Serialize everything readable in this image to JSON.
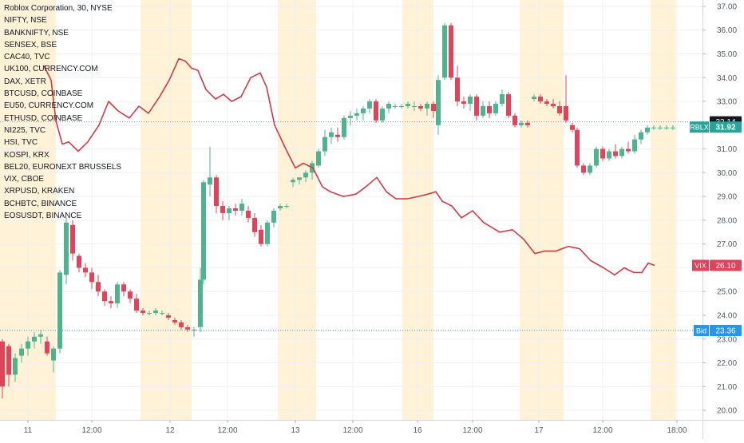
{
  "colors": {
    "up": "#26a69a",
    "up_fill": "#4fb48e",
    "down": "#e0445a",
    "vix_line": "#d63845",
    "session_band": "#fff2d6",
    "grid": "#eef0f3",
    "axis_text": "#555a66",
    "bid_tag": "#2196f3",
    "last_price_tag": "#26a69a",
    "vix_tag": "#e0445a",
    "prev_close_tag": "#131722"
  },
  "chart_data": {
    "type": "line",
    "title": "",
    "legend": {
      "placement": "top-left",
      "entries": [
        "Roblox Corporation, 30, NYSE",
        "NIFTY, NSE",
        "BANKNIFTY, NSE",
        "SENSEX, BSE",
        "CAC40, TVC",
        "UK100, CURRENCY.COM",
        "DAX, XETR",
        "BTCUSD, COINBASE",
        "EU50, CURRENCY.COM",
        "ETHUSD, COINBASE",
        "NI225, TVC",
        "HSI, TVC",
        "KOSPI, KRX",
        "BEL20, EURONEXT BRUSSELS",
        "VIX, CBOE",
        "XRPUSD, KRAKEN",
        "BCHBTC, BINANCE",
        "EOSUSDT, BINANCE"
      ]
    },
    "x_range": [
      0,
      880
    ],
    "y_range": [
      19.6,
      37.2
    ],
    "grid": true,
    "x_axis": {
      "ticks": [
        {
          "x": 35,
          "label": "11"
        },
        {
          "x": 115,
          "label": "12:00"
        },
        {
          "x": 213,
          "label": "12"
        },
        {
          "x": 285,
          "label": "12:00"
        },
        {
          "x": 370,
          "label": "13"
        },
        {
          "x": 442,
          "label": "12:00"
        },
        {
          "x": 523,
          "label": "16"
        },
        {
          "x": 592,
          "label": "12:00"
        },
        {
          "x": 675,
          "label": "17"
        },
        {
          "x": 755,
          "label": "12:00"
        },
        {
          "x": 848,
          "label": "18:00"
        }
      ]
    },
    "y_axis": {
      "placement": "right",
      "ticks": [
        "37.00",
        "36.00",
        "35.00",
        "34.00",
        "33.00",
        "32.00",
        "31.00",
        "30.00",
        "29.00",
        "28.00",
        "27.00",
        "26.00",
        "25.00",
        "24.00",
        "23.00",
        "22.00",
        "21.00",
        "20.00"
      ]
    },
    "session_bands": [
      [
        0,
        70
      ],
      [
        176,
        240
      ],
      [
        348,
        396
      ],
      [
        504,
        543
      ],
      [
        651,
        706
      ],
      [
        815,
        847
      ]
    ],
    "series": [
      {
        "name": "RBLX",
        "type": "candlestick",
        "candles": [
          [
            3,
            22.9,
            23.0,
            20.5,
            21.0
          ],
          [
            11,
            22.7,
            22.8,
            21.0,
            21.5
          ],
          [
            19,
            21.5,
            22.4,
            21.2,
            22.2
          ],
          [
            27,
            22.3,
            22.8,
            22.0,
            22.6
          ],
          [
            35,
            22.6,
            23.1,
            22.3,
            22.9
          ],
          [
            43,
            22.9,
            23.3,
            22.6,
            23.1
          ],
          [
            51,
            23.1,
            23.4,
            22.8,
            23.2
          ],
          [
            59,
            22.9,
            23.1,
            22.3,
            22.4
          ],
          [
            67,
            22.1,
            22.7,
            21.6,
            22.6
          ],
          [
            75,
            22.6,
            25.9,
            22.4,
            25.8
          ],
          [
            83,
            25.7,
            28.1,
            25.3,
            27.9
          ],
          [
            91,
            27.8,
            28.0,
            26.3,
            26.6
          ],
          [
            99,
            26.5,
            26.6,
            25.8,
            26.0
          ],
          [
            107,
            26.0,
            26.2,
            25.6,
            25.8
          ],
          [
            115,
            25.8,
            26.0,
            25.1,
            25.4
          ],
          [
            123,
            25.4,
            25.7,
            24.8,
            25.0
          ],
          [
            131,
            25.0,
            25.1,
            24.4,
            24.6
          ],
          [
            139,
            24.6,
            24.8,
            24.3,
            24.5
          ],
          [
            147,
            24.5,
            25.4,
            24.3,
            25.3
          ],
          [
            155,
            25.3,
            25.4,
            24.8,
            25.0
          ],
          [
            163,
            25.0,
            25.1,
            24.5,
            24.7
          ],
          [
            171,
            24.7,
            24.9,
            24.1,
            24.2
          ],
          [
            179,
            24.2,
            24.3,
            24.0,
            24.1
          ],
          [
            187,
            24.1,
            24.2,
            24.0,
            24.1
          ],
          [
            195,
            24.1,
            24.3,
            24.0,
            24.2
          ],
          [
            203,
            24.1,
            24.2,
            24.0,
            24.1
          ],
          [
            211,
            24.0,
            24.1,
            23.8,
            23.9
          ],
          [
            219,
            23.8,
            23.9,
            23.6,
            23.7
          ],
          [
            227,
            23.7,
            23.8,
            23.4,
            23.5
          ],
          [
            235,
            23.5,
            23.6,
            23.3,
            23.4
          ],
          [
            243,
            23.4,
            23.5,
            23.1,
            23.4
          ],
          [
            251,
            23.5,
            26.0,
            23.3,
            25.5
          ],
          [
            255,
            25.5,
            29.7,
            25.3,
            29.6
          ],
          [
            263,
            29.5,
            31.1,
            29.0,
            29.8
          ],
          [
            271,
            29.8,
            29.9,
            28.3,
            28.6
          ],
          [
            279,
            28.6,
            28.8,
            28.0,
            28.3
          ],
          [
            287,
            28.3,
            28.6,
            28.0,
            28.5
          ],
          [
            295,
            28.5,
            28.7,
            28.2,
            28.4
          ],
          [
            303,
            28.4,
            28.9,
            28.2,
            28.7
          ],
          [
            311,
            28.4,
            28.6,
            27.9,
            28.1
          ],
          [
            319,
            28.1,
            28.3,
            27.3,
            27.5
          ],
          [
            327,
            27.6,
            27.8,
            26.9,
            27.0
          ],
          [
            335,
            27.0,
            28.0,
            26.9,
            27.9
          ],
          [
            343,
            27.9,
            28.5,
            27.7,
            28.4
          ],
          [
            351,
            28.5,
            28.7,
            28.4,
            28.6
          ],
          [
            359,
            28.6,
            28.7,
            28.5,
            28.6
          ],
          [
            367,
            29.6,
            29.8,
            29.4,
            29.7
          ],
          [
            375,
            29.7,
            29.8,
            29.5,
            29.8
          ],
          [
            383,
            29.8,
            30.1,
            29.6,
            30.0
          ],
          [
            391,
            30.0,
            30.5,
            29.7,
            30.4
          ],
          [
            399,
            30.3,
            31.0,
            30.2,
            30.9
          ],
          [
            407,
            30.9,
            31.8,
            30.7,
            31.5
          ],
          [
            415,
            31.5,
            31.9,
            31.2,
            31.7
          ],
          [
            423,
            31.6,
            31.9,
            31.3,
            31.5
          ],
          [
            431,
            31.5,
            32.4,
            31.4,
            32.3
          ],
          [
            439,
            32.3,
            32.6,
            32.0,
            32.4
          ],
          [
            447,
            32.4,
            32.7,
            32.2,
            32.5
          ],
          [
            455,
            32.5,
            32.8,
            32.2,
            32.7
          ],
          [
            463,
            32.7,
            33.1,
            32.5,
            33.0
          ],
          [
            471,
            33.0,
            33.1,
            32.1,
            32.2
          ],
          [
            479,
            32.2,
            32.8,
            32.1,
            32.7
          ],
          [
            487,
            32.7,
            33.0,
            32.5,
            32.9
          ],
          [
            495,
            32.8,
            32.9,
            32.7,
            32.8
          ],
          [
            503,
            32.8,
            32.9,
            32.7,
            32.8
          ],
          [
            511,
            32.8,
            33.0,
            32.7,
            32.9
          ],
          [
            519,
            32.8,
            33.0,
            32.6,
            32.8
          ],
          [
            527,
            32.8,
            32.9,
            32.6,
            32.7
          ],
          [
            535,
            32.7,
            33.0,
            32.4,
            32.9
          ],
          [
            543,
            32.9,
            33.0,
            32.3,
            32.6
          ],
          [
            549,
            32.0,
            34.1,
            31.6,
            33.9
          ],
          [
            557,
            34.0,
            36.3,
            33.9,
            36.2
          ],
          [
            565,
            36.2,
            36.3,
            33.9,
            34.0
          ],
          [
            573,
            34.0,
            34.5,
            32.8,
            33.0
          ],
          [
            581,
            33.0,
            33.2,
            32.7,
            32.9
          ],
          [
            589,
            32.9,
            33.3,
            32.6,
            33.2
          ],
          [
            597,
            33.2,
            33.3,
            32.2,
            32.4
          ],
          [
            605,
            32.4,
            33.0,
            32.3,
            32.8
          ],
          [
            613,
            32.8,
            33.0,
            32.3,
            32.5
          ],
          [
            621,
            32.5,
            33.0,
            32.4,
            32.9
          ],
          [
            629,
            32.9,
            33.5,
            32.8,
            33.3
          ],
          [
            637,
            33.3,
            33.4,
            32.3,
            32.4
          ],
          [
            645,
            32.4,
            32.5,
            31.9,
            32.0
          ],
          [
            653,
            32.0,
            32.2,
            31.9,
            32.1
          ],
          [
            661,
            32.1,
            32.2,
            31.9,
            32.0
          ],
          [
            669,
            33.1,
            33.3,
            33.0,
            33.2
          ],
          [
            677,
            33.2,
            33.3,
            32.9,
            33.0
          ],
          [
            685,
            33.0,
            33.1,
            32.8,
            32.9
          ],
          [
            693,
            32.9,
            33.1,
            32.7,
            32.8
          ],
          [
            701,
            32.8,
            33.0,
            32.4,
            32.5
          ],
          [
            709,
            32.8,
            34.1,
            32.1,
            32.2
          ],
          [
            717,
            32.0,
            32.1,
            31.7,
            31.8
          ],
          [
            723,
            31.8,
            31.9,
            30.2,
            30.3
          ],
          [
            731,
            30.3,
            30.4,
            29.9,
            30.0
          ],
          [
            739,
            30.0,
            30.4,
            29.9,
            30.3
          ],
          [
            747,
            30.3,
            31.1,
            30.2,
            31.0
          ],
          [
            755,
            31.0,
            31.1,
            30.5,
            30.6
          ],
          [
            763,
            30.6,
            31.0,
            30.5,
            30.9
          ],
          [
            771,
            30.9,
            31.2,
            30.6,
            30.7
          ],
          [
            779,
            30.7,
            31.1,
            30.6,
            31.0
          ],
          [
            787,
            31.0,
            31.3,
            30.8,
            30.9
          ],
          [
            795,
            30.9,
            31.6,
            30.8,
            31.4
          ],
          [
            803,
            31.4,
            31.8,
            31.2,
            31.7
          ],
          [
            811,
            31.7,
            32.0,
            31.6,
            31.9
          ],
          [
            819,
            31.9,
            32.0,
            31.8,
            31.9
          ],
          [
            827,
            31.9,
            32.0,
            31.8,
            31.9
          ],
          [
            835,
            31.9,
            32.0,
            31.8,
            31.9
          ],
          [
            843,
            31.9,
            32.0,
            31.8,
            31.9
          ]
        ]
      },
      {
        "name": "VIX",
        "type": "line",
        "points": [
          [
            55,
            34.5
          ],
          [
            64,
            33.9
          ],
          [
            70,
            32.2
          ],
          [
            78,
            31.2
          ],
          [
            86,
            31.3
          ],
          [
            98,
            30.9
          ],
          [
            110,
            31.3
          ],
          [
            124,
            32.0
          ],
          [
            136,
            33.0
          ],
          [
            148,
            32.6
          ],
          [
            162,
            32.3
          ],
          [
            174,
            32.8
          ],
          [
            186,
            32.5
          ],
          [
            200,
            33.2
          ],
          [
            212,
            33.9
          ],
          [
            224,
            34.8
          ],
          [
            232,
            34.7
          ],
          [
            240,
            34.4
          ],
          [
            248,
            34.3
          ],
          [
            258,
            33.5
          ],
          [
            270,
            33.1
          ],
          [
            280,
            33.3
          ],
          [
            290,
            33.0
          ],
          [
            302,
            33.2
          ],
          [
            314,
            34.0
          ],
          [
            326,
            34.2
          ],
          [
            334,
            33.6
          ],
          [
            344,
            32.0
          ],
          [
            358,
            31.0
          ],
          [
            370,
            30.2
          ],
          [
            380,
            30.4
          ],
          [
            392,
            30.2
          ],
          [
            404,
            29.4
          ],
          [
            414,
            29.2
          ],
          [
            430,
            29.0
          ],
          [
            446,
            29.1
          ],
          [
            458,
            29.4
          ],
          [
            472,
            29.8
          ],
          [
            484,
            29.2
          ],
          [
            496,
            28.9
          ],
          [
            510,
            28.9
          ],
          [
            524,
            29.0
          ],
          [
            536,
            29.1
          ],
          [
            546,
            29.2
          ],
          [
            554,
            28.8
          ],
          [
            566,
            28.6
          ],
          [
            578,
            28.1
          ],
          [
            592,
            28.4
          ],
          [
            606,
            27.9
          ],
          [
            626,
            27.5
          ],
          [
            642,
            27.6
          ],
          [
            656,
            27.2
          ],
          [
            670,
            26.6
          ],
          [
            682,
            26.7
          ],
          [
            696,
            26.7
          ],
          [
            712,
            26.9
          ],
          [
            726,
            26.8
          ],
          [
            740,
            26.3
          ],
          [
            756,
            26.0
          ],
          [
            770,
            25.7
          ],
          [
            782,
            26.0
          ],
          [
            794,
            25.8
          ],
          [
            804,
            25.8
          ],
          [
            812,
            26.2
          ],
          [
            820,
            26.1
          ]
        ]
      }
    ],
    "reference_lines": [
      {
        "y": 32.14,
        "label": "32.14"
      },
      {
        "y": 23.36,
        "label": "Bid"
      }
    ],
    "price_tags": [
      {
        "name": "RBLX",
        "value": "31.92"
      },
      {
        "name": "VIX",
        "value": "26.10"
      },
      {
        "name": "Bid",
        "value": "23.36"
      },
      {
        "name": "",
        "value": "32.14"
      }
    ]
  }
}
